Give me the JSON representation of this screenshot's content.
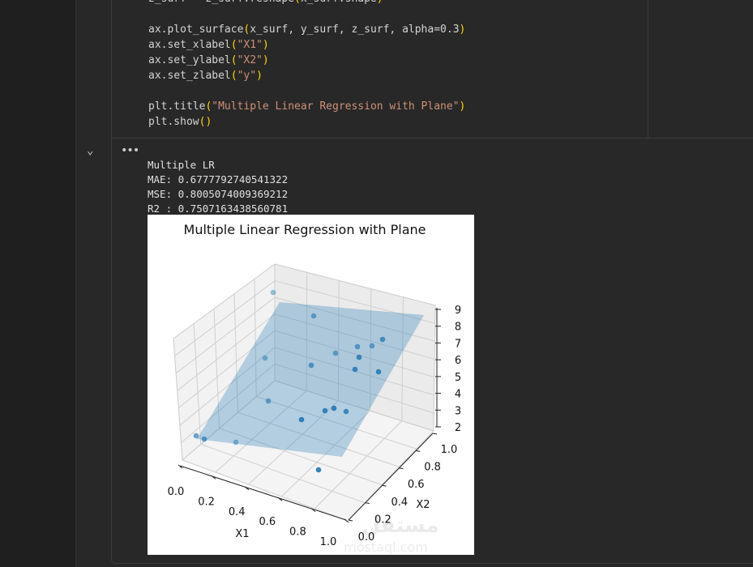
{
  "code_lines": [
    "z_surf = z_surf.reshape(x_surf.shape)",
    "",
    "ax.plot_surface(x_surf, y_surf, z_surf, alpha=0.3)",
    "ax.set_xlabel(\"X1\")",
    "ax.set_ylabel(\"X2\")",
    "ax.set_zlabel(\"y\")",
    "",
    "plt.title(\"Multiple Linear Regression with Plane\")",
    "plt.show()"
  ],
  "output": {
    "collapse_icon": "chevron-down-icon",
    "more_icon": "ellipsis-icon",
    "lines": [
      "Multiple LR",
      "MAE: 0.6777792740541322",
      "MSE: 0.8005074009369212",
      "R2 : 0.7507163438560781"
    ]
  },
  "chart_data": {
    "type": "scatter3d",
    "title": "Multiple Linear Regression with Plane",
    "xlabel": "X1",
    "ylabel": "X2",
    "x_ticks": [
      "0.0",
      "0.2",
      "0.4",
      "0.6",
      "0.8",
      "1.0"
    ],
    "y_ticks": [
      "0.0",
      "0.2",
      "0.4",
      "0.6",
      "0.8",
      "1.0"
    ],
    "z_ticks": [
      "2",
      "3",
      "4",
      "5",
      "6",
      "7",
      "8",
      "9"
    ],
    "xlim": [
      0,
      1
    ],
    "ylim": [
      0,
      1
    ],
    "zlim": [
      2,
      9
    ],
    "point_count": 20,
    "point_color": "#1f77b4",
    "plane_color": "#1f77b4",
    "grid": true
  },
  "watermark": {
    "arabic": "مستقل",
    "latin": "mostaql.com"
  }
}
